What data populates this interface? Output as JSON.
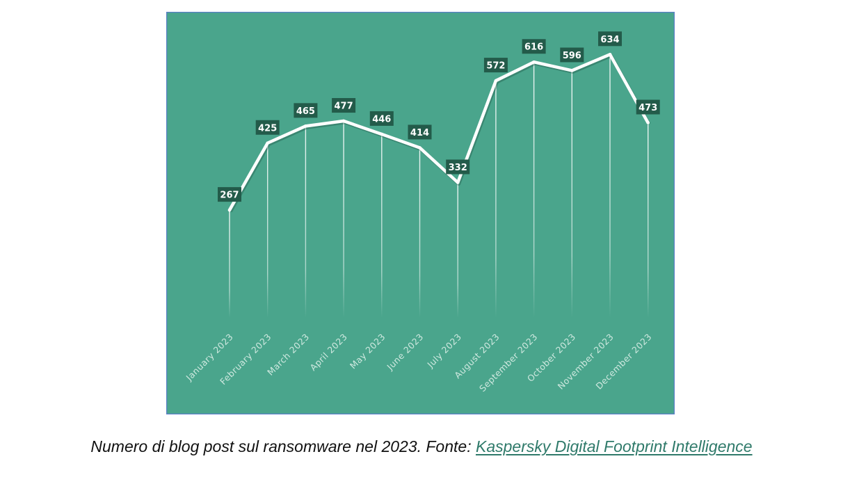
{
  "chart_data": {
    "type": "line",
    "title": "",
    "xlabel": "",
    "ylabel": "",
    "categories": [
      "January 2023",
      "February 2023",
      "March 2023",
      "April 2023",
      "May 2023",
      "June 2023",
      "July 2023",
      "August 2023",
      "September 2023",
      "October 2023",
      "November 2023",
      "December 2023"
    ],
    "values": [
      267,
      425,
      465,
      477,
      446,
      414,
      332,
      572,
      616,
      596,
      634,
      473
    ],
    "ylim": [
      0,
      740
    ],
    "grid": false,
    "data_labels": true,
    "colors": {
      "background": "#4aa58c",
      "border": "#5b7fc7",
      "line": "#ffffff",
      "label_box": "#235b4a",
      "label_text": "#ffffff",
      "tick_text": "#cfe9e0"
    }
  },
  "caption": {
    "text": "Numero di blog post sul ransomware nel 2023. Fonte: ",
    "link_text": "Kaspersky Digital Footprint Intelligence",
    "link_color": "#2f7a6a"
  }
}
